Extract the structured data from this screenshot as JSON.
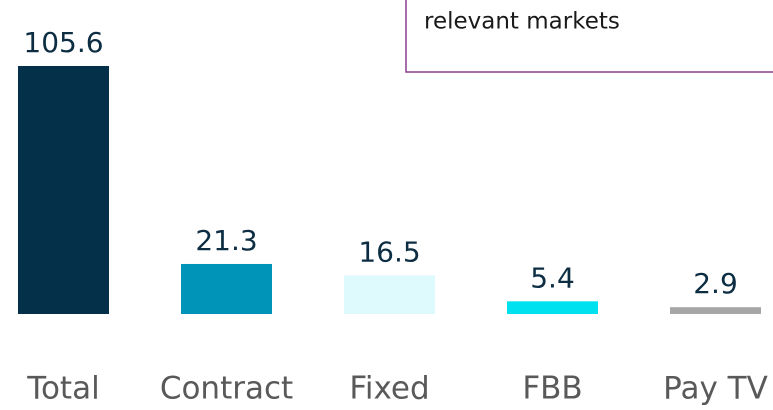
{
  "chart_data": {
    "type": "bar",
    "annotation": "relevant markets",
    "categories": [
      "Total",
      "Contract",
      "Fixed",
      "FBB",
      "Pay TV"
    ],
    "values": [
      105.6,
      21.3,
      16.5,
      5.4,
      2.9
    ],
    "colors": [
      "#05304a",
      "#0095b8",
      "#dffafc",
      "#00e1f0",
      "#a6a6a6"
    ]
  }
}
